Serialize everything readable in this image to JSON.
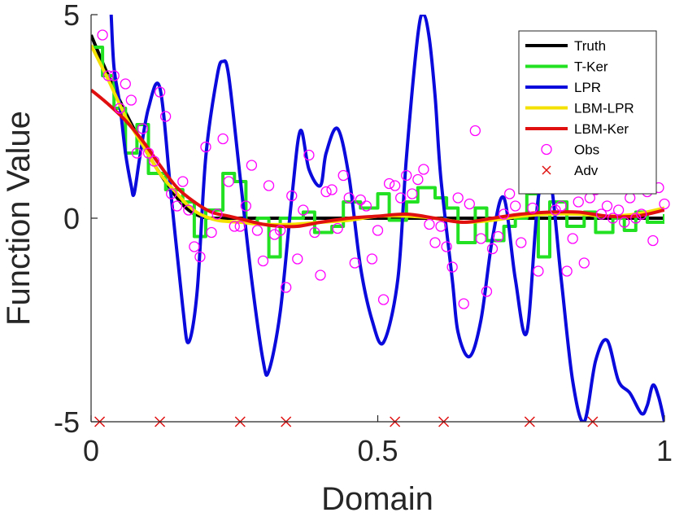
{
  "chart_data": {
    "type": "line",
    "title": "",
    "xlabel": "Domain",
    "ylabel": "Function Value",
    "xlim": [
      0,
      1
    ],
    "ylim": [
      -5,
      5
    ],
    "x_ticks": [
      {
        "value": 0,
        "label": "0"
      },
      {
        "value": 0.5,
        "label": "0.5"
      },
      {
        "value": 1,
        "label": "1"
      }
    ],
    "y_ticks": [
      {
        "value": -5,
        "label": "-5"
      },
      {
        "value": 0,
        "label": "0"
      },
      {
        "value": 5,
        "label": "5"
      }
    ],
    "grid": false,
    "legend_position": "top-right",
    "series": [
      {
        "name": "Truth",
        "kind": "line",
        "color": "#000000",
        "x": [
          0,
          0.03,
          0.06,
          0.09,
          0.12,
          0.15,
          0.17,
          0.19,
          0.21,
          0.25,
          0.3,
          0.4,
          0.5,
          0.6,
          0.7,
          0.8,
          0.9,
          1.0
        ],
        "y": [
          4.5,
          3.5,
          2.6,
          1.8,
          1.1,
          0.5,
          0.2,
          0.05,
          0,
          0,
          0,
          0,
          0,
          0,
          0,
          0,
          0,
          0
        ]
      },
      {
        "name": "T-Ker",
        "kind": "step",
        "color": "#22e022",
        "x": [
          0,
          0.02,
          0.04,
          0.06,
          0.08,
          0.1,
          0.13,
          0.16,
          0.18,
          0.2,
          0.23,
          0.25,
          0.27,
          0.29,
          0.31,
          0.33,
          0.37,
          0.39,
          0.42,
          0.44,
          0.47,
          0.5,
          0.52,
          0.55,
          0.57,
          0.6,
          0.62,
          0.64,
          0.67,
          0.69,
          0.72,
          0.74,
          0.76,
          0.78,
          0.8,
          0.83,
          0.86,
          0.88,
          0.91,
          0.93,
          0.95,
          0.97,
          1.0
        ],
        "y": [
          4.2,
          3.5,
          2.7,
          1.6,
          2.3,
          1.1,
          0.7,
          0.4,
          -0.45,
          0.2,
          1.1,
          0.9,
          -0.1,
          0,
          -0.95,
          0,
          0.15,
          -0.35,
          -0.2,
          0.4,
          0.25,
          0.6,
          -0.05,
          0.4,
          0.75,
          0.5,
          0.25,
          -0.6,
          0.25,
          -0.55,
          -0.2,
          0,
          0.6,
          -0.95,
          0.4,
          -0.2,
          0.15,
          -0.35,
          0,
          -0.3,
          0.15,
          -0.1,
          0.1
        ]
      },
      {
        "name": "LPR",
        "kind": "line",
        "color": "#0a0adc",
        "x": [
          0.035,
          0.04,
          0.05,
          0.06,
          0.07,
          0.075,
          0.085,
          0.1,
          0.12,
          0.14,
          0.16,
          0.17,
          0.185,
          0.2,
          0.22,
          0.23,
          0.24,
          0.26,
          0.28,
          0.3,
          0.31,
          0.33,
          0.35,
          0.365,
          0.38,
          0.4,
          0.41,
          0.43,
          0.45,
          0.47,
          0.49,
          0.51,
          0.535,
          0.55,
          0.57,
          0.58,
          0.59,
          0.6,
          0.61,
          0.63,
          0.64,
          0.66,
          0.68,
          0.7,
          0.72,
          0.74,
          0.76,
          0.78,
          0.8,
          0.82,
          0.84,
          0.86,
          0.88,
          0.9,
          0.92,
          0.94,
          0.96,
          0.97,
          0.98,
          0.99,
          1.0
        ],
        "y": [
          5,
          3.7,
          2.8,
          1.6,
          0.8,
          0.6,
          1.5,
          2.7,
          3.2,
          0.5,
          -2.2,
          -3.05,
          -1.8,
          1.5,
          3.5,
          3.85,
          3.5,
          1.0,
          -1.5,
          -3.5,
          -3.75,
          -2.3,
          0.5,
          2.15,
          1.2,
          0.8,
          1.6,
          2.2,
          1.0,
          -1.2,
          -2.5,
          -3.05,
          -1.5,
          1.5,
          4.5,
          5.0,
          4.4,
          3.0,
          1.0,
          -1.5,
          -2.8,
          -3.4,
          -2.5,
          -0.5,
          0.5,
          -1.5,
          -2.8,
          0.5,
          1.0,
          -1.5,
          -4.0,
          -5.0,
          -3.5,
          -3.0,
          -4.0,
          -4.3,
          -4.8,
          -4.6,
          -4.1,
          -4.4,
          -5.0
        ]
      },
      {
        "name": "LBM-LPR",
        "kind": "line",
        "color": "#f5e100",
        "x": [
          0,
          0.03,
          0.06,
          0.09,
          0.12,
          0.15,
          0.17,
          0.19,
          0.22,
          0.26,
          0.3,
          0.35,
          0.4,
          0.45,
          0.5,
          0.55,
          0.6,
          0.65,
          0.7,
          0.75,
          0.8,
          0.85,
          0.9,
          0.95,
          1.0
        ],
        "y": [
          4.25,
          3.4,
          2.5,
          1.8,
          1.1,
          0.6,
          0.3,
          0.1,
          -0.05,
          -0.1,
          -0.15,
          -0.15,
          -0.1,
          -0.05,
          0.05,
          0.05,
          0,
          -0.1,
          -0.05,
          0.05,
          0.1,
          0.1,
          0.05,
          0.1,
          0.25
        ]
      },
      {
        "name": "LBM-Ker",
        "kind": "line",
        "color": "#e01010",
        "x": [
          0,
          0.03,
          0.06,
          0.09,
          0.12,
          0.15,
          0.18,
          0.21,
          0.24,
          0.27,
          0.3,
          0.33,
          0.36,
          0.4,
          0.45,
          0.5,
          0.55,
          0.6,
          0.65,
          0.7,
          0.75,
          0.8,
          0.85,
          0.9,
          0.95,
          1.0
        ],
        "y": [
          3.15,
          2.8,
          2.4,
          1.9,
          1.3,
          0.75,
          0.4,
          0.15,
          0.05,
          -0.05,
          -0.15,
          -0.2,
          -0.2,
          -0.1,
          0,
          0.05,
          0.1,
          0,
          -0.1,
          0,
          0.1,
          0.15,
          0.15,
          0.05,
          0.05,
          0.2
        ]
      },
      {
        "name": "Obs",
        "kind": "scatter",
        "marker": "circle",
        "color": "#ff00ff",
        "x": [
          0.02,
          0.03,
          0.04,
          0.05,
          0.06,
          0.07,
          0.08,
          0.09,
          0.1,
          0.11,
          0.12,
          0.13,
          0.14,
          0.15,
          0.16,
          0.17,
          0.18,
          0.19,
          0.2,
          0.21,
          0.22,
          0.23,
          0.24,
          0.25,
          0.26,
          0.27,
          0.28,
          0.29,
          0.3,
          0.31,
          0.32,
          0.33,
          0.34,
          0.35,
          0.36,
          0.37,
          0.38,
          0.39,
          0.4,
          0.41,
          0.42,
          0.43,
          0.44,
          0.45,
          0.46,
          0.47,
          0.48,
          0.49,
          0.5,
          0.51,
          0.52,
          0.53,
          0.54,
          0.55,
          0.56,
          0.57,
          0.58,
          0.59,
          0.6,
          0.61,
          0.62,
          0.63,
          0.64,
          0.65,
          0.66,
          0.67,
          0.68,
          0.69,
          0.7,
          0.71,
          0.72,
          0.73,
          0.74,
          0.75,
          0.76,
          0.77,
          0.78,
          0.79,
          0.8,
          0.81,
          0.82,
          0.83,
          0.84,
          0.85,
          0.86,
          0.87,
          0.88,
          0.89,
          0.9,
          0.91,
          0.92,
          0.93,
          0.94,
          0.95,
          0.96,
          0.97,
          0.98,
          0.99,
          1.0
        ],
        "y": [
          4.5,
          3.5,
          3.5,
          2.7,
          3.3,
          2.9,
          1.6,
          2.2,
          1.6,
          1.4,
          3.1,
          2.5,
          0.6,
          0.3,
          0.9,
          0.2,
          -0.7,
          -0.95,
          1.75,
          -0.35,
          0.1,
          1.95,
          0.9,
          -0.2,
          -0.2,
          0.3,
          1.3,
          -0.3,
          -1.05,
          0.8,
          -0.4,
          -0.3,
          -1.7,
          0.55,
          -1.0,
          0.2,
          1.55,
          -0.35,
          -1.4,
          0.65,
          0.7,
          -0.25,
          1.05,
          0.5,
          -1.1,
          0.45,
          0.3,
          -1.0,
          -0.3,
          -2.0,
          0.85,
          0.8,
          0.5,
          1.05,
          0.6,
          0.95,
          1.2,
          -0.15,
          -0.6,
          -0.2,
          -0.7,
          -1.2,
          0.5,
          -2.1,
          0.35,
          2.15,
          -0.5,
          -1.8,
          -0.75,
          -0.45,
          0.1,
          0.6,
          0.3,
          -0.6,
          1.6,
          0.25,
          -1.3,
          0.75,
          1.0,
          0.2,
          0.3,
          -1.3,
          -0.5,
          0.4,
          -1.1,
          0.5,
          0.7,
          0.1,
          0.3,
          0,
          0.2,
          -0.1,
          0.5,
          0,
          0.1,
          0.65,
          -0.55,
          0.75,
          0.35
        ]
      },
      {
        "name": "Adv",
        "kind": "scatter",
        "marker": "x",
        "color": "#e01010",
        "x": [
          0.015,
          0.12,
          0.26,
          0.34,
          0.53,
          0.615,
          0.765,
          0.875
        ],
        "y": [
          -5,
          -5,
          -5,
          -5,
          -5,
          -5,
          -5,
          -5
        ]
      }
    ]
  }
}
